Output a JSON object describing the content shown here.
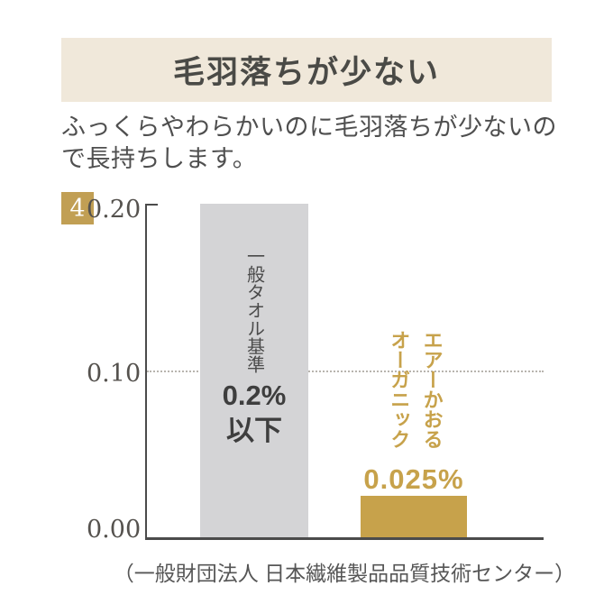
{
  "page": {
    "background": "#FFFFFF"
  },
  "header": {
    "title": "毛羽落ちが少ない",
    "banner_color": "#F0E8DA",
    "title_color": "#4A4A46"
  },
  "description": {
    "text": "ふっくらやわらかいのに毛羽落ちが少ないので長持ちします。"
  },
  "chart": {
    "badge": "4",
    "badge_color": "#C19F54",
    "standard_bar": {
      "label": "一般タオル基準",
      "value_line1": "0.2%",
      "value_line2": "以下",
      "color": "#D4D4D6"
    },
    "product_bar": {
      "label_line1": "エアーかおる",
      "label_line2": "オーガニック",
      "value": "0.025%",
      "color": "#C7A24B"
    },
    "source": "（一般財団法人 日本繊維製品品質技術センター）"
  },
  "chart_data": {
    "type": "bar",
    "title": "毛羽落ちが少ない",
    "categories": [
      "一般タオル基準",
      "エアーかおるオーガニック"
    ],
    "values": [
      0.2,
      0.025
    ],
    "data_labels": [
      "0.2%以下",
      "0.025%"
    ],
    "colors": [
      "#D4D4D6",
      "#C7A24B"
    ],
    "xlabel": "",
    "ylabel": "",
    "ylim": [
      0,
      0.2
    ],
    "yticks": [
      0.2,
      0.1,
      0.0
    ],
    "ytick_labels": [
      "0.20",
      "0.10",
      "0.00"
    ],
    "reference_line_y": 0.1,
    "reference_line_style": "dotted",
    "legend": "none",
    "source": "（一般財団法人 日本繊維製品品質技術センター）"
  }
}
